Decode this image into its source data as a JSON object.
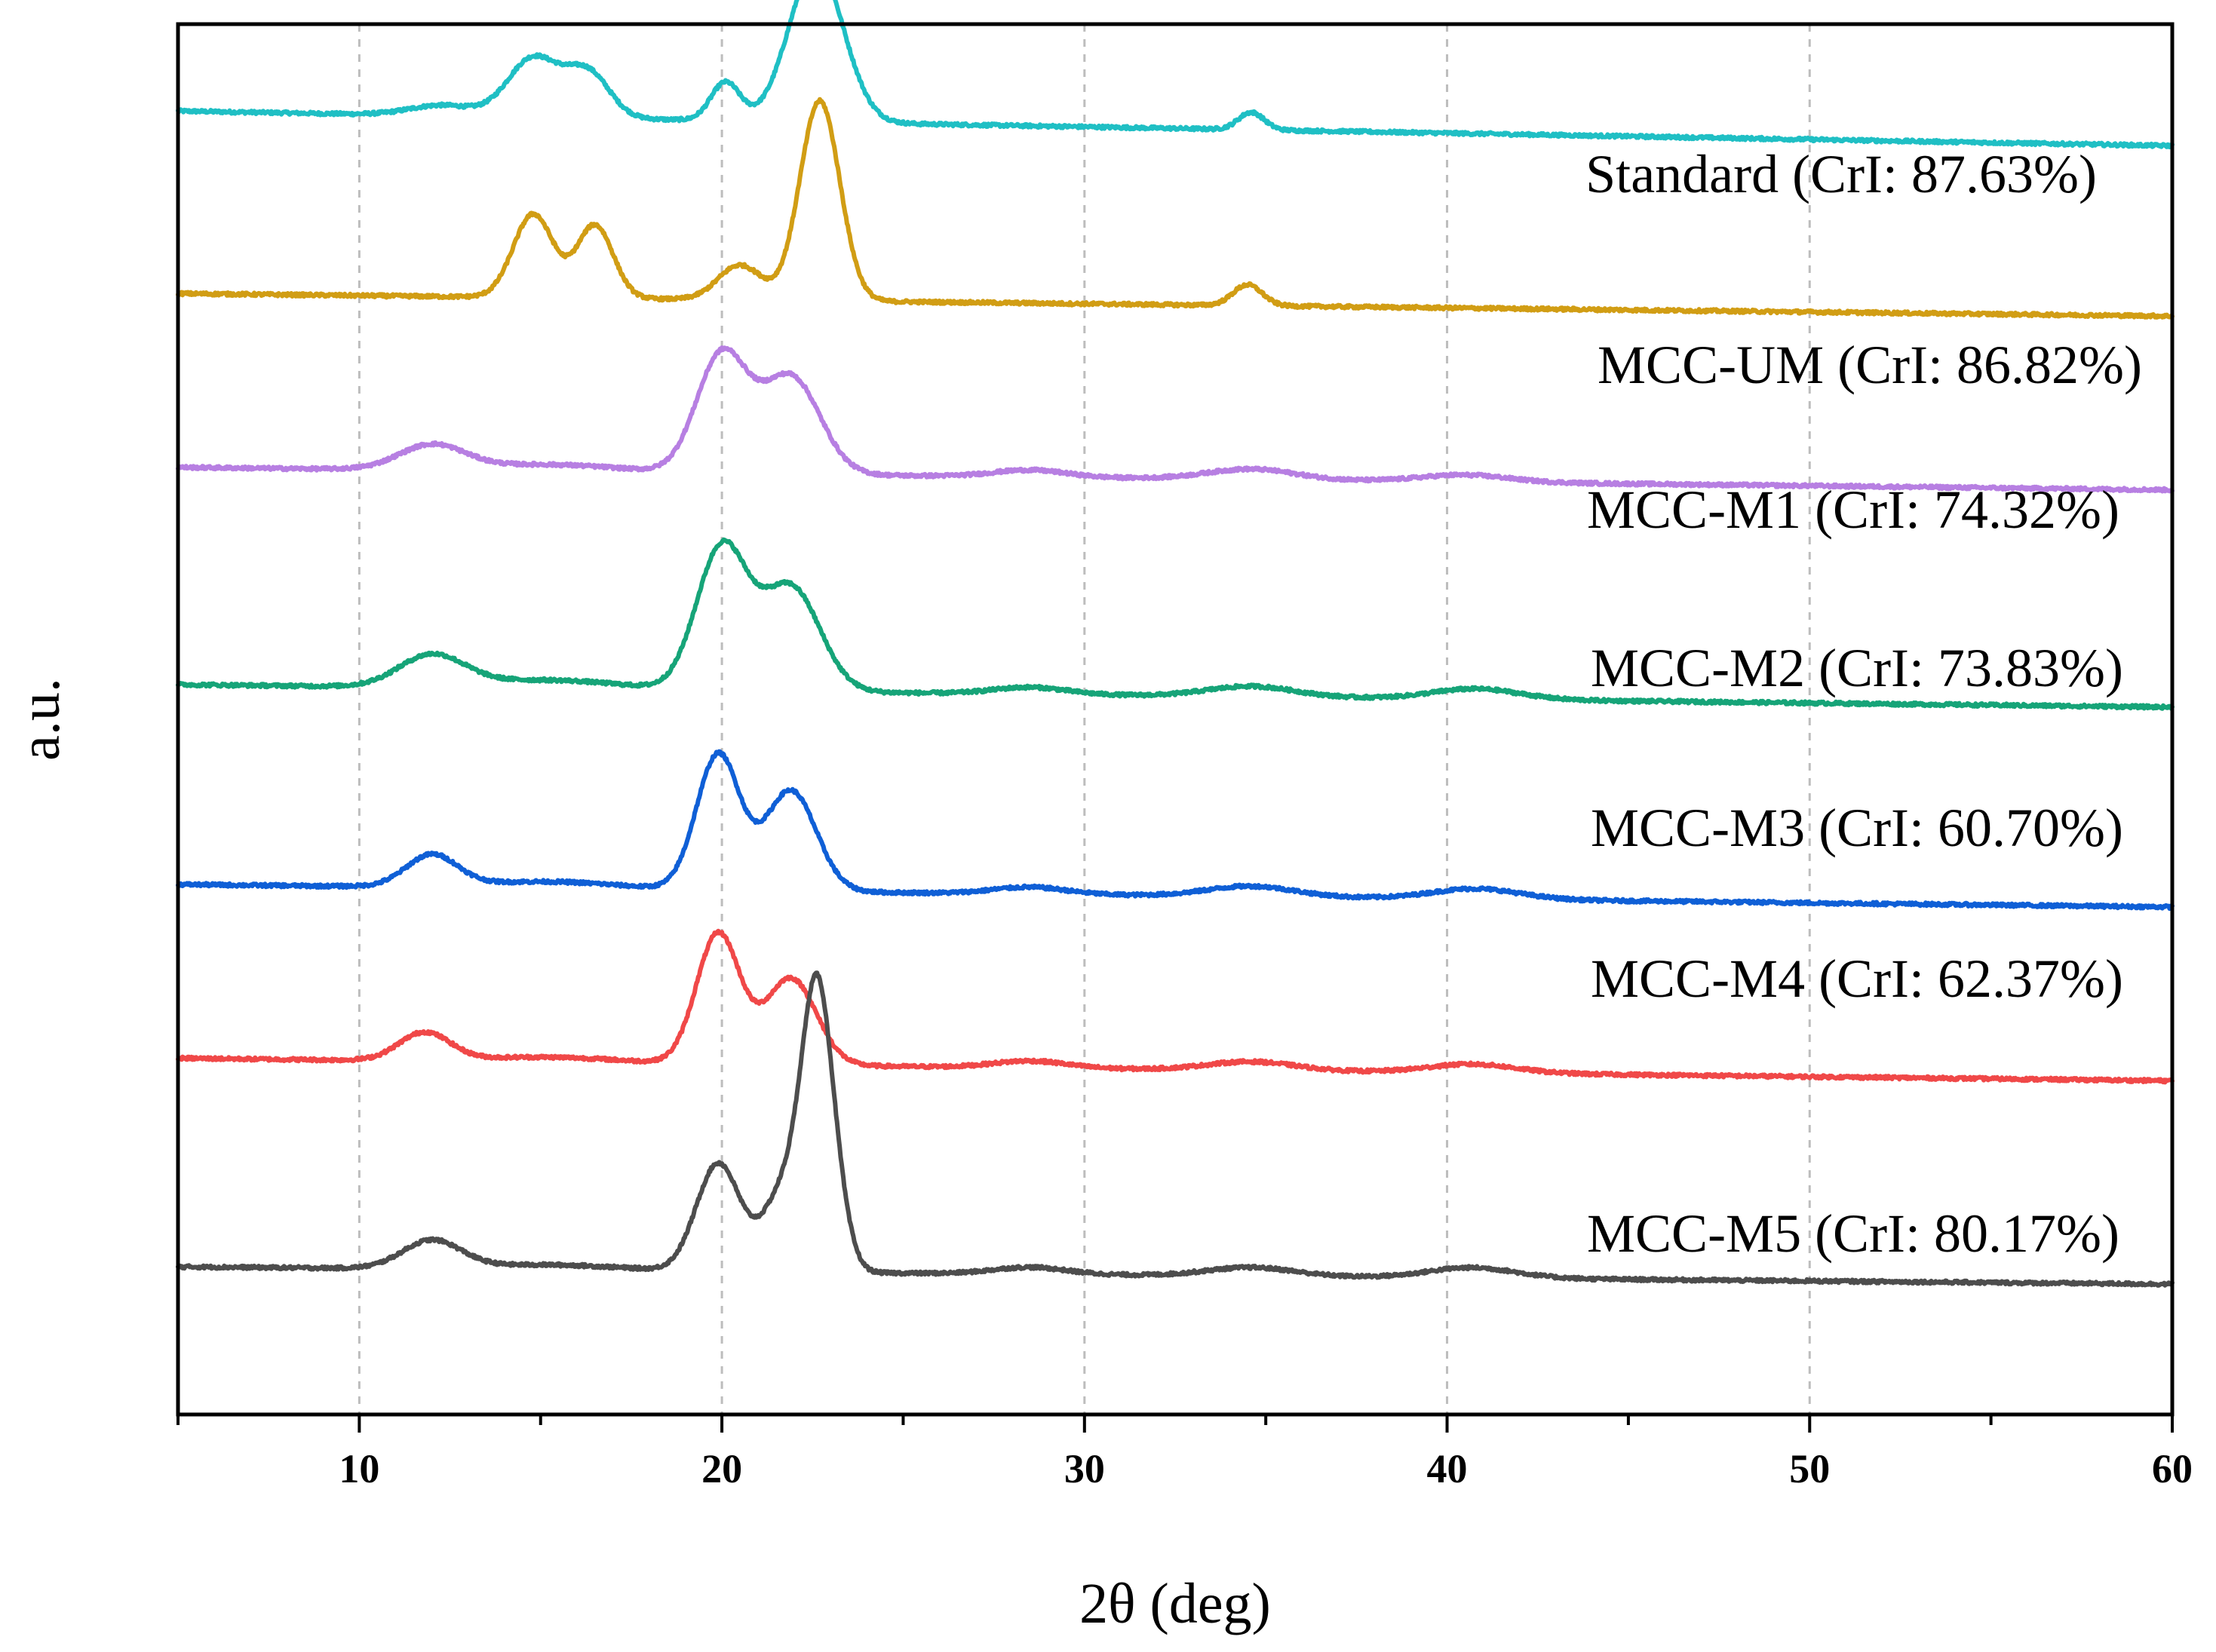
{
  "chart_data": {
    "type": "line",
    "title": "",
    "xlabel": "2θ (deg)",
    "ylabel": "a.u.",
    "xlim": [
      5,
      60
    ],
    "ylim": [
      0,
      8
    ],
    "xticks": [
      10,
      20,
      30,
      40,
      50,
      60
    ],
    "grid": "vertical-dashed",
    "series": [
      {
        "name": "Standard",
        "label": "Standard (CrI: 87.63%)",
        "color": "#1fbfc4",
        "offset": 7.25,
        "baseline": [
          0.25,
          0.2,
          0.1
        ],
        "peaks": [
          [
            12.3,
            0.06,
            0.9
          ],
          [
            14.8,
            0.34,
            0.7
          ],
          [
            16.3,
            0.26,
            0.6
          ],
          [
            20.1,
            0.22,
            0.4
          ],
          [
            22.6,
            0.9,
            0.75
          ],
          [
            34.6,
            0.1,
            0.35
          ]
        ]
      },
      {
        "name": "MCC-UM",
        "label": "MCC-UM (CrI: 86.82%)",
        "color": "#d19d14",
        "offset": 6.25,
        "baseline": [
          0.2,
          0.13,
          0.1
        ],
        "peaks": [
          [
            14.8,
            0.48,
            0.55
          ],
          [
            16.5,
            0.42,
            0.5
          ],
          [
            20.5,
            0.2,
            0.6
          ],
          [
            22.7,
            1.15,
            0.55
          ],
          [
            34.5,
            0.12,
            0.4
          ]
        ]
      },
      {
        "name": "MCC-M1",
        "label": "MCC-M1 (CrI: 74.32%)",
        "color": "#b77fe2",
        "offset": 5.25,
        "baseline": [
          0.2,
          0.13,
          0.1
        ],
        "peaks": [
          [
            12.0,
            0.14,
            0.9
          ],
          [
            15.2,
            0.04,
            2.0
          ],
          [
            20.0,
            0.68,
            0.7
          ],
          [
            21.9,
            0.56,
            0.8
          ],
          [
            28.5,
            0.04,
            1.0
          ],
          [
            34.6,
            0.06,
            1.2
          ],
          [
            40.5,
            0.04,
            1.2
          ]
        ]
      },
      {
        "name": "MCC-M2",
        "label": "MCC-M2 (CrI: 73.83%)",
        "color": "#16a478",
        "offset": 4.0,
        "baseline": [
          0.2,
          0.13,
          0.1
        ],
        "peaks": [
          [
            12.0,
            0.18,
            0.9
          ],
          [
            15.2,
            0.05,
            2.0
          ],
          [
            20.0,
            0.82,
            0.7
          ],
          [
            21.9,
            0.6,
            0.8
          ],
          [
            28.5,
            0.04,
            1.0
          ],
          [
            34.6,
            0.06,
            1.2
          ],
          [
            40.8,
            0.06,
            1.2
          ]
        ]
      },
      {
        "name": "MCC-M3",
        "label": "MCC-M3 (CrI: 60.70%)",
        "color": "#0f5fd6",
        "offset": 2.85,
        "baseline": [
          0.2,
          0.13,
          0.1
        ],
        "peaks": [
          [
            12.0,
            0.18,
            0.7
          ],
          [
            15.2,
            0.04,
            2.0
          ],
          [
            19.9,
            0.78,
            0.6
          ],
          [
            21.9,
            0.58,
            0.7
          ],
          [
            28.5,
            0.04,
            1.0
          ],
          [
            34.6,
            0.06,
            1.2
          ],
          [
            40.8,
            0.06,
            1.2
          ]
        ]
      },
      {
        "name": "MCC-M4",
        "label": "MCC-M4 (CrI: 62.37%)",
        "color": "#f04848",
        "offset": 1.85,
        "baseline": [
          0.2,
          0.13,
          0.1
        ],
        "peaks": [
          [
            11.8,
            0.16,
            0.7
          ],
          [
            15.2,
            0.03,
            2.0
          ],
          [
            19.9,
            0.75,
            0.6
          ],
          [
            21.9,
            0.5,
            0.7
          ],
          [
            28.5,
            0.04,
            1.0
          ],
          [
            34.6,
            0.05,
            1.2
          ],
          [
            40.7,
            0.05,
            1.2
          ]
        ]
      },
      {
        "name": "MCC-M5",
        "label": "MCC-M5 (CrI: 80.17%)",
        "color": "#4d4d4d",
        "offset": 0.65,
        "baseline": [
          0.2,
          0.1,
          0.1
        ],
        "peaks": [
          [
            12.0,
            0.16,
            0.8
          ],
          [
            15.2,
            0.03,
            2.0
          ],
          [
            19.9,
            0.62,
            0.6
          ],
          [
            21.8,
            0.5,
            0.6
          ],
          [
            22.6,
            1.35,
            0.4
          ],
          [
            23.1,
            0.35,
            0.4
          ],
          [
            28.5,
            0.04,
            1.0
          ],
          [
            34.6,
            0.05,
            1.2
          ],
          [
            40.7,
            0.06,
            1.2
          ]
        ]
      }
    ]
  }
}
